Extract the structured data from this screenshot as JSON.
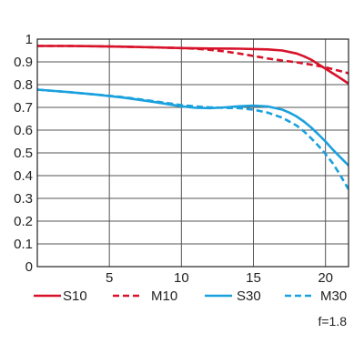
{
  "chart_data": {
    "type": "line",
    "x_ticks": [
      5,
      10,
      15,
      20
    ],
    "y_ticks": [
      "0",
      "0.1",
      "0.2",
      "0.3",
      "0.4",
      "0.5",
      "0.6",
      "0.7",
      "0.8",
      "0.9",
      "1"
    ],
    "xlim": [
      0,
      21.6
    ],
    "ylim": [
      0,
      1
    ],
    "grid": true,
    "legend_position": "bottom",
    "annotation": "f=1.8",
    "series": [
      {
        "name": "S10",
        "color": "#d7132a",
        "style": "solid",
        "x": [
          0,
          2,
          4,
          6,
          8,
          10,
          12,
          14,
          16,
          17,
          18,
          18.5,
          19,
          19.5,
          20,
          20.5,
          21,
          21.6
        ],
        "y": [
          0.97,
          0.97,
          0.969,
          0.967,
          0.964,
          0.961,
          0.959,
          0.958,
          0.955,
          0.95,
          0.937,
          0.925,
          0.91,
          0.89,
          0.87,
          0.85,
          0.83,
          0.805
        ]
      },
      {
        "name": "M10",
        "color": "#d7132a",
        "style": "dashed",
        "x": [
          0,
          2,
          4,
          6,
          8,
          10,
          11,
          12,
          13,
          14,
          15,
          16,
          17,
          18,
          19,
          20,
          21,
          21.6
        ],
        "y": [
          0.97,
          0.97,
          0.969,
          0.967,
          0.964,
          0.961,
          0.958,
          0.953,
          0.946,
          0.937,
          0.926,
          0.915,
          0.906,
          0.898,
          0.888,
          0.876,
          0.86,
          0.85
        ]
      },
      {
        "name": "S30",
        "color": "#1aa1dd",
        "style": "solid",
        "x": [
          0,
          2,
          4,
          6,
          8,
          10,
          11,
          12,
          13,
          14,
          15,
          16,
          17,
          17.5,
          18,
          18.5,
          19,
          19.5,
          20,
          20.5,
          21,
          21.6
        ],
        "y": [
          0.778,
          0.768,
          0.757,
          0.743,
          0.725,
          0.705,
          0.698,
          0.697,
          0.7,
          0.705,
          0.708,
          0.704,
          0.69,
          0.677,
          0.66,
          0.638,
          0.612,
          0.582,
          0.55,
          0.515,
          0.483,
          0.445
        ]
      },
      {
        "name": "M30",
        "color": "#1aa1dd",
        "style": "dashed",
        "x": [
          0,
          2,
          4,
          6,
          8,
          10,
          11,
          12,
          13,
          14,
          15,
          16,
          17,
          18,
          18.5,
          19,
          19.5,
          20,
          20.5,
          21,
          21.6
        ],
        "y": [
          0.778,
          0.768,
          0.757,
          0.745,
          0.728,
          0.71,
          0.704,
          0.7,
          0.698,
          0.697,
          0.69,
          0.677,
          0.655,
          0.62,
          0.595,
          0.565,
          0.532,
          0.495,
          0.455,
          0.405,
          0.34
        ]
      }
    ]
  }
}
